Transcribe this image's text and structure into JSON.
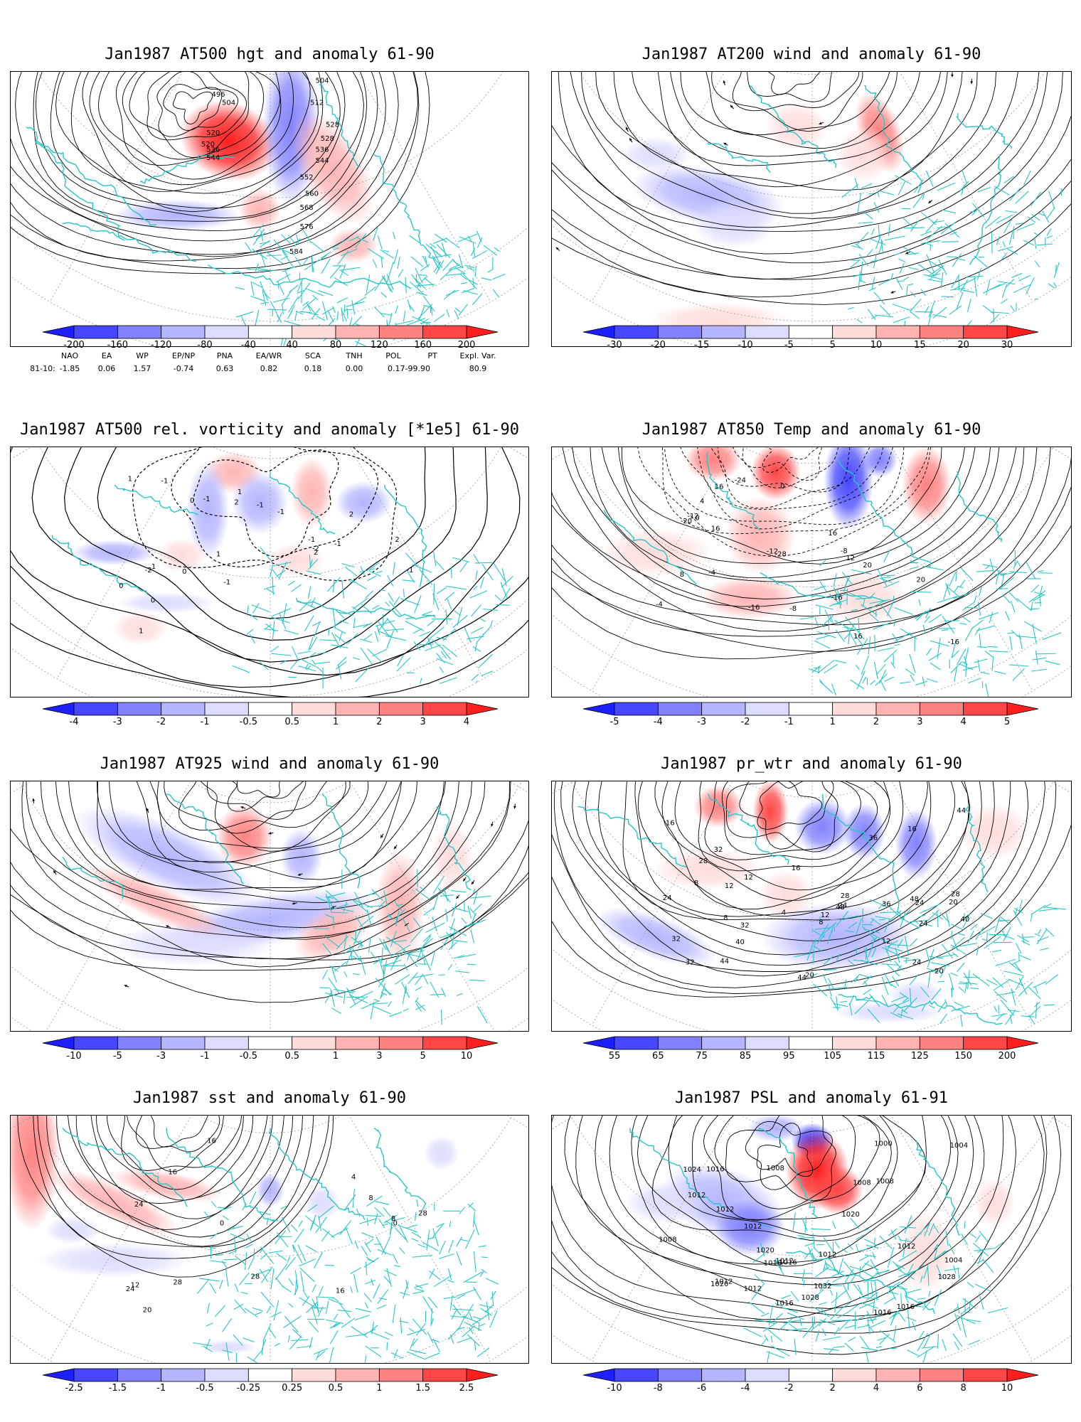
{
  "panels": [
    {
      "id": "p1",
      "title": "Jan1987 AT500 hgt and anomaly 61-90",
      "colorbar": [
        "-200",
        "-160",
        "-120",
        "-80",
        "-40",
        "40",
        "80",
        "120",
        "160",
        "200"
      ],
      "contour_labels": [
        "504",
        "512",
        "496",
        "504",
        "520",
        "528",
        "520",
        "528",
        "536",
        "536",
        "544",
        "544",
        "552",
        "560",
        "568",
        "576",
        "584"
      ],
      "anomaly_blobs": [
        {
          "sign": "pos",
          "strength": 3
        },
        {
          "sign": "neg",
          "strength": 2
        },
        {
          "sign": "pos",
          "strength": 1
        },
        {
          "sign": "neg",
          "strength": 1
        }
      ]
    },
    {
      "id": "p2",
      "title": "Jan1987 AT200 wind and anomaly 61-90",
      "colorbar": [
        "-30",
        "-20",
        "-15",
        "-10",
        "-5",
        "5",
        "10",
        "15",
        "20",
        "30"
      ],
      "contour_labels": []
    },
    {
      "id": "p3",
      "title": "Jan1987 AT500 rel. vorticity and anomaly [*1e5] 61-90",
      "colorbar": [
        "-4",
        "-3",
        "-2",
        "-1",
        "-0.5",
        "0.5",
        "1",
        "2",
        "3",
        "4"
      ],
      "contour_labels": [
        "-1",
        "1",
        "-2",
        "2",
        "0",
        "1",
        "-1",
        "2",
        "1",
        "-2",
        "0",
        "2",
        "-1",
        "1",
        "0",
        "-1",
        "-1",
        "1",
        "2",
        "0",
        "-1",
        "-1",
        "-1"
      ]
    },
    {
      "id": "p4",
      "title": "Jan1987 AT850 Temp and anomaly 61-90",
      "colorbar": [
        "-5",
        "-4",
        "-3",
        "-2",
        "-1",
        "1",
        "2",
        "3",
        "4",
        "5"
      ],
      "contour_labels": [
        "16",
        "-28",
        "-24",
        "-20",
        "-16",
        "-16",
        "-12",
        "-12",
        "-8",
        "-8",
        "-4",
        "-4",
        "0",
        "0",
        "4",
        "8",
        "12",
        "16",
        "16",
        "20",
        "20",
        "-16",
        "16"
      ]
    },
    {
      "id": "p5",
      "title": "Jan1987 AT925 wind and anomaly 61-90",
      "colorbar": [
        "-10",
        "-5",
        "-3",
        "-1",
        "-0.5",
        "0.5",
        "1",
        "3",
        "5",
        "10"
      ],
      "contour_labels": []
    },
    {
      "id": "p6",
      "title": "Jan1987 pr_wtr and anomaly 61-90",
      "colorbar": [
        "55",
        "65",
        "75",
        "85",
        "95",
        "105",
        "115",
        "125",
        "150",
        "200"
      ],
      "contour_labels": [
        "44",
        "24",
        "48",
        "36",
        "32",
        "44",
        "32",
        "28",
        "24",
        "24",
        "20",
        "36",
        "40",
        "44",
        "16",
        "12",
        "8",
        "4",
        "8",
        "12",
        "12",
        "8",
        "16",
        "20",
        "16",
        "28",
        "32",
        "24",
        "12",
        "28",
        "24",
        "20",
        "32",
        "40",
        "48"
      ]
    },
    {
      "id": "p7",
      "title": "Jan1987 sst and anomaly 61-90",
      "colorbar": [
        "-2.5",
        "-1.5",
        "-1",
        "-0.5",
        "-0.25",
        "0.25",
        "0.5",
        "1",
        "1.5",
        "2.5"
      ],
      "contour_labels": [
        "28",
        "28",
        "24",
        "0",
        "4",
        "8",
        "12",
        "16",
        "20",
        "24",
        "28",
        "16",
        "16",
        "0",
        "8"
      ]
    },
    {
      "id": "p8",
      "title": "Jan1987 PSL and anomaly 61-91",
      "colorbar": [
        "-10",
        "-8",
        "-6",
        "-4",
        "-2",
        "2",
        "4",
        "6",
        "8",
        "10"
      ],
      "contour_labels": [
        "1008",
        "1004",
        "1008",
        "1000",
        "1016",
        "1008",
        "1020",
        "1016",
        "1012",
        "1004",
        "1008",
        "1012",
        "1016",
        "1016",
        "1020",
        "1012",
        "1012",
        "1024",
        "1028",
        "1032",
        "1028",
        "1020",
        "1016",
        "1016",
        "1012",
        "1012",
        "1012",
        "1012"
      ]
    }
  ],
  "teleconnections": {
    "headers": [
      "NAO",
      "EA",
      "WP",
      "EP/NP",
      "PNA",
      "EA/WR",
      "SCA",
      "TNH",
      "POL",
      "PT",
      "Expl. Var."
    ],
    "row_label": "81-10:",
    "values": [
      "-1.85",
      "0.06",
      "1.57",
      "-0.74",
      "0.63",
      "0.82",
      "0.18",
      "0.00",
      "0.17-99.90",
      "",
      "80.9"
    ]
  },
  "colors": {
    "coast": "#27c6c6",
    "neg": [
      "#1e1eff",
      "#4646ff",
      "#8282ff",
      "#b4b4ff",
      "#dcdcff"
    ],
    "pos": [
      "#ffdcdc",
      "#ffb4b4",
      "#ff8282",
      "#ff4646",
      "#ff1e1e"
    ]
  }
}
